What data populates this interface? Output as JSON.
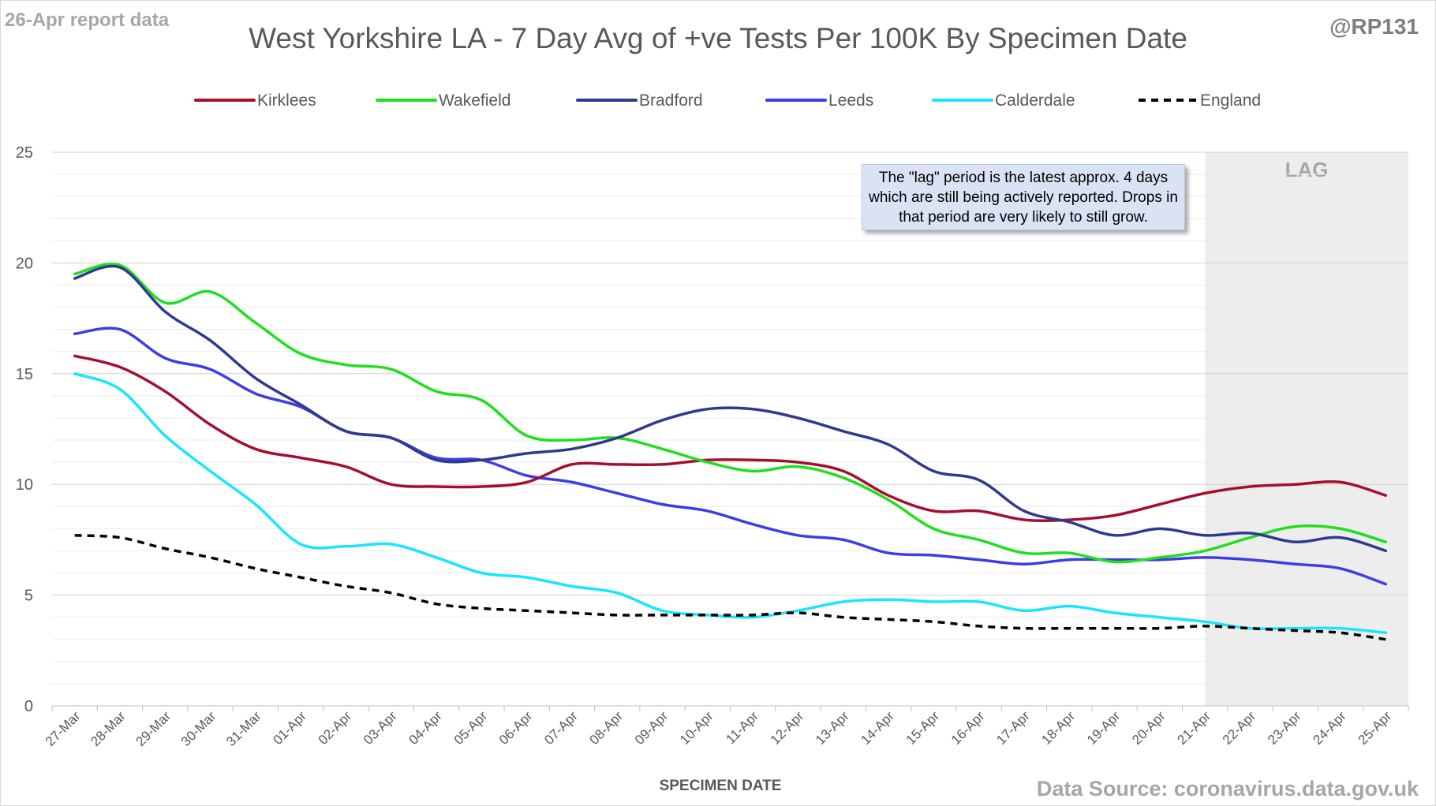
{
  "report_label": "26-Apr report data",
  "handle": "@RP131",
  "source": "Data Source: coronavirus.data.gov.uk",
  "note": "The \"lag\" period is the latest approx. 4 days which are still being actively reported.  Drops in that period are very likely to still grow.",
  "chart_data": {
    "type": "line",
    "title": "West Yorkshire LA - 7 Day Avg of +ve Tests Per 100K By Specimen Date",
    "xlabel": "SPECIMEN DATE",
    "ylabel": "",
    "ylim": [
      0,
      25
    ],
    "yticks": [
      0,
      5,
      10,
      15,
      20,
      25
    ],
    "grid": true,
    "legend_position": "top",
    "lag_label": "LAG",
    "lag_start": "21-Apr",
    "categories": [
      "27-Mar",
      "28-Mar",
      "29-Mar",
      "30-Mar",
      "31-Mar",
      "01-Apr",
      "02-Apr",
      "03-Apr",
      "04-Apr",
      "05-Apr",
      "06-Apr",
      "07-Apr",
      "08-Apr",
      "09-Apr",
      "10-Apr",
      "11-Apr",
      "12-Apr",
      "13-Apr",
      "14-Apr",
      "15-Apr",
      "16-Apr",
      "17-Apr",
      "18-Apr",
      "19-Apr",
      "20-Apr",
      "21-Apr",
      "22-Apr",
      "23-Apr",
      "24-Apr",
      "25-Apr"
    ],
    "series": [
      {
        "name": "Kirklees",
        "color": "#a50f2f",
        "dash": false,
        "values": [
          15.8,
          15.3,
          14.2,
          12.7,
          11.6,
          11.2,
          10.8,
          10.0,
          9.9,
          9.9,
          10.1,
          10.9,
          10.9,
          10.9,
          11.1,
          11.1,
          11.0,
          10.6,
          9.5,
          8.8,
          8.8,
          8.4,
          8.4,
          8.6,
          9.1,
          9.6,
          9.9,
          10.0,
          10.1,
          9.5
        ]
      },
      {
        "name": "Wakefield",
        "color": "#1ee01e",
        "dash": false,
        "values": [
          19.5,
          19.9,
          18.2,
          18.7,
          17.3,
          15.9,
          15.4,
          15.2,
          14.2,
          13.8,
          12.2,
          12.0,
          12.1,
          11.6,
          11.0,
          10.6,
          10.8,
          10.3,
          9.3,
          8.0,
          7.5,
          6.9,
          6.9,
          6.5,
          6.7,
          7.0,
          7.6,
          8.1,
          8.0,
          7.4
        ]
      },
      {
        "name": "Bradford",
        "color": "#2f3a8f",
        "dash": false,
        "values": [
          19.3,
          19.8,
          17.8,
          16.5,
          14.8,
          13.6,
          12.4,
          12.1,
          11.1,
          11.1,
          11.4,
          11.6,
          12.1,
          12.9,
          13.4,
          13.4,
          13.0,
          12.4,
          11.8,
          10.6,
          10.2,
          8.8,
          8.3,
          7.7,
          8.0,
          7.7,
          7.8,
          7.4,
          7.6,
          7.0
        ]
      },
      {
        "name": "Leeds",
        "color": "#3d3de8",
        "dash": false,
        "values": [
          16.8,
          17.0,
          15.7,
          15.2,
          14.1,
          13.5,
          12.4,
          12.1,
          11.2,
          11.1,
          10.4,
          10.1,
          9.6,
          9.1,
          8.8,
          8.2,
          7.7,
          7.5,
          6.9,
          6.8,
          6.6,
          6.4,
          6.6,
          6.6,
          6.6,
          6.7,
          6.6,
          6.4,
          6.2,
          5.5
        ]
      },
      {
        "name": "Calderdale",
        "color": "#1ae5ff",
        "dash": false,
        "values": [
          15.0,
          14.3,
          12.2,
          10.6,
          9.1,
          7.3,
          7.2,
          7.3,
          6.7,
          6.0,
          5.8,
          5.4,
          5.1,
          4.3,
          4.1,
          4.0,
          4.3,
          4.7,
          4.8,
          4.7,
          4.7,
          4.3,
          4.5,
          4.2,
          4.0,
          3.8,
          3.5,
          3.5,
          3.5,
          3.3
        ]
      },
      {
        "name": "England",
        "color": "#000000",
        "dash": true,
        "values": [
          7.7,
          7.6,
          7.1,
          6.7,
          6.2,
          5.8,
          5.4,
          5.1,
          4.6,
          4.4,
          4.3,
          4.2,
          4.1,
          4.1,
          4.1,
          4.1,
          4.2,
          4.0,
          3.9,
          3.8,
          3.6,
          3.5,
          3.5,
          3.5,
          3.5,
          3.6,
          3.5,
          3.4,
          3.3,
          3.0
        ]
      }
    ]
  }
}
